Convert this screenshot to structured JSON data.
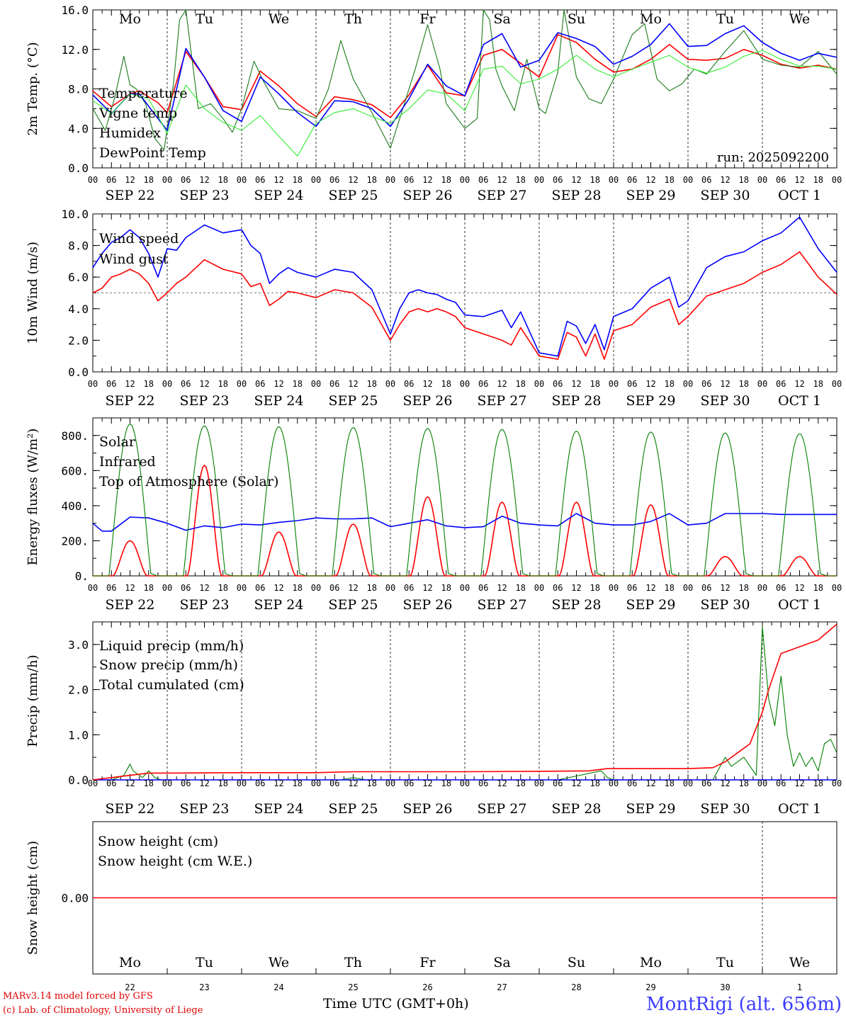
{
  "meta": {
    "station": "MontRigi (alt. 656m)",
    "run": "run: 2025092200",
    "credit_line1": "MARv3.14 model forced by GFS",
    "credit_line2": "(c) Lab. of Climatology, University of Liege",
    "xaxis_title": "Time UTC (GMT+0h)"
  },
  "colors": {
    "red": "#ff0000",
    "blue": "#0000ff",
    "green": "#008000",
    "lightgreen": "#33ee33",
    "darkgreen": "#1a7a1a"
  },
  "time_axis": {
    "hour_labels": [
      "00",
      "06",
      "12",
      "18"
    ],
    "final_label": "00",
    "date_labels": [
      "SEP 22",
      "SEP 23",
      "SEP 24",
      "SEP 25",
      "SEP 26",
      "SEP 27",
      "SEP 28",
      "SEP 29",
      "SEP 30",
      "OCT  1"
    ],
    "weekdays": [
      "Mo",
      "Tu",
      "We",
      "Th",
      "Fr",
      "Sa",
      "Su",
      "Mo",
      "Tu",
      "We"
    ],
    "weekend_flags": [
      false,
      false,
      false,
      false,
      false,
      true,
      true,
      false,
      false,
      false
    ],
    "day_numbers": [
      "22",
      "23",
      "24",
      "25",
      "26",
      "27",
      "28",
      "29",
      "30",
      "1"
    ]
  },
  "chart_data": [
    {
      "type": "line",
      "id": "temp",
      "ylabel": "2m Temp. (°C)",
      "ylim": [
        0,
        16
      ],
      "yticks": [
        "0.0",
        "4.0",
        "8.0",
        "12.0",
        "16.0"
      ],
      "x_unit": "hours since SEP 22 00 UTC",
      "series": [
        {
          "name": "Temperature",
          "color": "red",
          "x": [
            0,
            6,
            12,
            15,
            21,
            24,
            30,
            36,
            42,
            48,
            54,
            60,
            66,
            72,
            78,
            84,
            90,
            96,
            102,
            108,
            114,
            120,
            126,
            132,
            138,
            144,
            150,
            156,
            162,
            168,
            174,
            180,
            186,
            192,
            198,
            204,
            210,
            216,
            222,
            228,
            234,
            240
          ],
          "y": [
            7.8,
            6.2,
            7.5,
            7.8,
            6.6,
            5.6,
            11.8,
            9.2,
            6.2,
            5.9,
            9.8,
            8.3,
            6.5,
            5.2,
            7.2,
            6.9,
            6.4,
            5.1,
            7.4,
            10.4,
            7.6,
            7.3,
            11.4,
            12.0,
            10.6,
            9.2,
            13.5,
            12.7,
            11.0,
            9.7,
            10.0,
            11.0,
            12.5,
            11.0,
            10.9,
            11.1,
            12.0,
            11.4,
            10.5,
            10.1,
            10.4,
            10.0
          ]
        },
        {
          "name": "Vigne temp",
          "color": "darkgreen",
          "x": [
            0,
            4,
            7,
            10,
            12,
            14,
            17,
            20,
            23,
            26,
            28,
            30,
            34,
            38,
            42,
            45,
            48,
            52,
            55,
            60,
            66,
            72,
            76,
            80,
            84,
            90,
            96,
            100,
            104,
            108,
            112,
            114,
            120,
            124,
            126,
            128,
            130,
            132,
            136,
            140,
            144,
            146,
            150,
            152,
            156,
            160,
            164,
            168,
            170,
            172,
            174,
            178,
            182,
            186,
            190,
            194,
            198,
            204,
            210,
            216,
            222,
            228,
            234,
            240
          ],
          "y": [
            6.0,
            3.8,
            7.0,
            11.3,
            8.4,
            8.0,
            6.5,
            3.0,
            1.8,
            8.5,
            15.0,
            16.0,
            6.0,
            6.5,
            5.0,
            3.6,
            6.0,
            10.8,
            8.8,
            6.0,
            5.8,
            5.0,
            8.0,
            12.9,
            9.0,
            5.6,
            2.0,
            6.0,
            10.0,
            14.5,
            10.0,
            6.5,
            4.0,
            5.0,
            16.0,
            15.0,
            10.0,
            8.3,
            5.8,
            11.0,
            6.0,
            5.5,
            9.7,
            16.0,
            9.2,
            7.0,
            6.5,
            9.0,
            10.5,
            12.0,
            13.5,
            14.6,
            9.0,
            7.8,
            8.5,
            10.0,
            9.5,
            11.8,
            13.9,
            11.0,
            10.4,
            10.2,
            11.8,
            9.5
          ]
        },
        {
          "name": "Humidex",
          "color": "blue",
          "x": [
            0,
            6,
            12,
            15,
            21,
            24,
            30,
            36,
            42,
            48,
            54,
            60,
            66,
            72,
            78,
            84,
            90,
            96,
            102,
            108,
            114,
            120,
            126,
            132,
            138,
            144,
            150,
            156,
            162,
            168,
            174,
            180,
            186,
            192,
            198,
            204,
            210,
            216,
            222,
            228,
            234,
            240
          ],
          "y": [
            7.4,
            5.5,
            7.5,
            7.5,
            5.0,
            3.8,
            12.1,
            9.2,
            5.8,
            4.7,
            9.2,
            7.5,
            5.6,
            4.2,
            6.8,
            6.7,
            6.0,
            4.2,
            7.0,
            10.5,
            8.3,
            7.3,
            12.5,
            13.6,
            10.2,
            10.9,
            13.7,
            13.1,
            12.3,
            10.5,
            11.3,
            12.5,
            14.6,
            12.3,
            12.4,
            13.6,
            14.4,
            12.7,
            11.6,
            10.9,
            11.6,
            11.2
          ]
        },
        {
          "name": "DewPoint Temp",
          "color": "lightgreen",
          "x": [
            0,
            6,
            12,
            18,
            24,
            30,
            36,
            42,
            48,
            54,
            60,
            66,
            72,
            78,
            84,
            90,
            96,
            102,
            108,
            114,
            120,
            126,
            132,
            138,
            144,
            150,
            156,
            162,
            168,
            174,
            180,
            186,
            192,
            198,
            204,
            210,
            216,
            222,
            228,
            234,
            240
          ],
          "y": [
            6.8,
            5.5,
            7.5,
            7.0,
            3.5,
            8.4,
            6.0,
            4.6,
            3.8,
            5.3,
            3.2,
            1.2,
            4.5,
            5.6,
            6.0,
            5.2,
            4.5,
            6.0,
            7.9,
            7.5,
            5.8,
            10.0,
            10.3,
            8.5,
            9.0,
            10.0,
            11.4,
            10.0,
            9.2,
            10.0,
            10.7,
            11.4,
            10.2,
            9.6,
            10.2,
            11.3,
            11.9,
            11.0,
            10.3,
            10.3,
            10.0
          ]
        }
      ]
    },
    {
      "type": "line",
      "id": "wind",
      "ylabel": "10m Wind (m/s)",
      "ylim": [
        0,
        10
      ],
      "yticks": [
        "0.0",
        "2.0",
        "4.0",
        "6.0",
        "8.0",
        "10.0"
      ],
      "reference_line": 5.0,
      "series": [
        {
          "name": "Wind speed",
          "color": "red",
          "x": [
            0,
            3,
            6,
            9,
            12,
            15,
            18,
            21,
            24,
            27,
            30,
            36,
            42,
            48,
            51,
            54,
            57,
            60,
            63,
            66,
            72,
            78,
            84,
            90,
            96,
            99,
            102,
            105,
            108,
            111,
            114,
            117,
            120,
            126,
            132,
            135,
            138,
            144,
            150,
            153,
            156,
            159,
            162,
            165,
            168,
            174,
            180,
            186,
            189,
            192,
            198,
            204,
            210,
            216,
            222,
            228,
            234,
            240
          ],
          "y": [
            5.0,
            5.3,
            6.0,
            6.2,
            6.5,
            6.2,
            5.6,
            4.5,
            5.0,
            5.6,
            6.0,
            7.1,
            6.5,
            6.2,
            5.4,
            5.6,
            4.2,
            4.6,
            5.1,
            5.0,
            4.7,
            5.2,
            5.0,
            4.1,
            2.0,
            3.0,
            3.8,
            4.0,
            3.8,
            4.0,
            3.8,
            3.5,
            2.8,
            2.4,
            2.0,
            1.7,
            2.8,
            1.0,
            0.8,
            2.5,
            2.2,
            1.0,
            2.4,
            0.8,
            2.6,
            3.0,
            4.1,
            4.6,
            3.0,
            3.5,
            4.8,
            5.2,
            5.6,
            6.3,
            6.8,
            7.6,
            6.0,
            4.9
          ]
        },
        {
          "name": "Wind gust",
          "color": "blue",
          "x": [
            0,
            3,
            6,
            9,
            12,
            15,
            18,
            21,
            24,
            27,
            30,
            36,
            42,
            48,
            51,
            54,
            57,
            60,
            63,
            66,
            72,
            78,
            84,
            90,
            96,
            99,
            102,
            105,
            108,
            111,
            114,
            117,
            120,
            126,
            132,
            135,
            138,
            144,
            150,
            153,
            156,
            159,
            162,
            165,
            168,
            174,
            180,
            186,
            189,
            192,
            198,
            204,
            210,
            216,
            222,
            228,
            234,
            240
          ],
          "y": [
            6.6,
            7.5,
            8.2,
            8.5,
            9.0,
            8.5,
            7.5,
            6.0,
            7.8,
            7.7,
            8.5,
            9.3,
            8.8,
            9.0,
            8.0,
            7.5,
            5.6,
            6.2,
            6.6,
            6.3,
            6.0,
            6.5,
            6.3,
            5.2,
            2.4,
            4.0,
            5.0,
            5.2,
            5.0,
            4.9,
            4.6,
            4.4,
            3.6,
            3.5,
            3.9,
            2.8,
            3.8,
            1.2,
            1.0,
            3.2,
            2.9,
            1.8,
            3.0,
            1.4,
            3.5,
            4.0,
            5.3,
            6.0,
            4.1,
            4.5,
            6.6,
            7.3,
            7.6,
            8.3,
            8.8,
            9.8,
            7.8,
            6.3
          ]
        }
      ]
    },
    {
      "type": "line",
      "id": "energy",
      "ylabel": "Energy fluxes (W/m²)",
      "ylim": [
        0,
        900
      ],
      "yticks": [
        "0.",
        "200.",
        "400.",
        "600.",
        "800."
      ],
      "series": [
        {
          "name": "Solar",
          "color": "red",
          "peaks": [
            {
              "t": 12,
              "v": 200
            },
            {
              "t": 36,
              "v": 630
            },
            {
              "t": 60,
              "v": 250
            },
            {
              "t": 84,
              "v": 295
            },
            {
              "t": 108,
              "v": 450
            },
            {
              "t": 132,
              "v": 420
            },
            {
              "t": 156,
              "v": 420
            },
            {
              "t": 180,
              "v": 405
            },
            {
              "t": 204,
              "v": 110
            },
            {
              "t": 228,
              "v": 110
            }
          ]
        },
        {
          "name": "Infrared",
          "color": "blue",
          "x": [
            0,
            3,
            6,
            12,
            18,
            24,
            30,
            36,
            42,
            48,
            54,
            60,
            66,
            72,
            78,
            84,
            90,
            96,
            102,
            108,
            114,
            120,
            126,
            132,
            138,
            144,
            150,
            156,
            162,
            168,
            174,
            180,
            186,
            192,
            198,
            204,
            210,
            216,
            222,
            228,
            234,
            240
          ],
          "y": [
            300,
            255,
            255,
            335,
            330,
            300,
            260,
            285,
            275,
            295,
            290,
            305,
            315,
            330,
            325,
            325,
            330,
            280,
            300,
            320,
            285,
            275,
            280,
            340,
            300,
            290,
            285,
            355,
            300,
            290,
            290,
            310,
            355,
            290,
            300,
            355,
            355,
            355,
            350,
            350,
            350,
            350
          ]
        },
        {
          "name": "Top of Atmosphere (Solar)",
          "color": "green",
          "peaks": [
            {
              "t": 12,
              "v": 865
            },
            {
              "t": 36,
              "v": 855
            },
            {
              "t": 60,
              "v": 850
            },
            {
              "t": 84,
              "v": 845
            },
            {
              "t": 108,
              "v": 840
            },
            {
              "t": 132,
              "v": 835
            },
            {
              "t": 156,
              "v": 825
            },
            {
              "t": 180,
              "v": 820
            },
            {
              "t": 204,
              "v": 815
            },
            {
              "t": 228,
              "v": 810
            }
          ]
        }
      ]
    },
    {
      "type": "line",
      "id": "precip",
      "ylabel": "Precip (mm/h)",
      "ylim": [
        0,
        3.5
      ],
      "yticks": [
        "0.0",
        "1.0",
        "2.0",
        "3.0"
      ],
      "series": [
        {
          "name": "Liquid precip (mm/h)",
          "color": "green",
          "x": [
            0,
            6,
            10,
            12,
            13,
            16,
            18,
            20,
            22,
            24,
            30,
            80,
            84,
            88,
            130,
            150,
            164,
            166,
            168,
            200,
            204,
            206,
            210,
            214,
            216,
            218,
            220,
            222,
            224,
            226,
            228,
            230,
            232,
            234,
            236,
            238,
            240
          ],
          "y": [
            0,
            0,
            0.1,
            0.35,
            0.2,
            0.05,
            0.2,
            0.05,
            0,
            0,
            0,
            0,
            0.05,
            0,
            0,
            0,
            0.2,
            0.05,
            0,
            0,
            0.5,
            0.3,
            0.5,
            0.1,
            3.4,
            1.8,
            1.2,
            2.3,
            1.0,
            0.3,
            0.6,
            0.3,
            0.5,
            0.2,
            0.8,
            0.9,
            0.6
          ]
        },
        {
          "name": "Snow precip (mm/h)",
          "color": "blue",
          "x": [
            0,
            240
          ],
          "y": [
            0,
            0
          ]
        },
        {
          "name": "Total cumulated (cm)",
          "color": "red",
          "x": [
            0,
            12,
            18,
            24,
            48,
            72,
            84,
            96,
            120,
            144,
            160,
            166,
            192,
            200,
            204,
            208,
            212,
            216,
            218,
            222,
            226,
            230,
            234,
            240
          ],
          "y": [
            0,
            0.1,
            0.15,
            0.15,
            0.16,
            0.16,
            0.18,
            0.18,
            0.18,
            0.19,
            0.2,
            0.25,
            0.25,
            0.27,
            0.4,
            0.6,
            0.8,
            1.5,
            2.0,
            2.8,
            2.9,
            3.0,
            3.1,
            3.45
          ]
        }
      ]
    },
    {
      "type": "line",
      "id": "snow",
      "ylabel": "Snow height (cm)",
      "ylim": [
        -1,
        1
      ],
      "yticks": [
        "0.00"
      ],
      "series": [
        {
          "name": "Snow height (cm)",
          "color": "red",
          "x": [
            0,
            240
          ],
          "y": [
            0,
            0
          ]
        },
        {
          "name": "Snow height (cm W.E.)",
          "color": "blue",
          "x": [],
          "y": []
        }
      ]
    }
  ]
}
